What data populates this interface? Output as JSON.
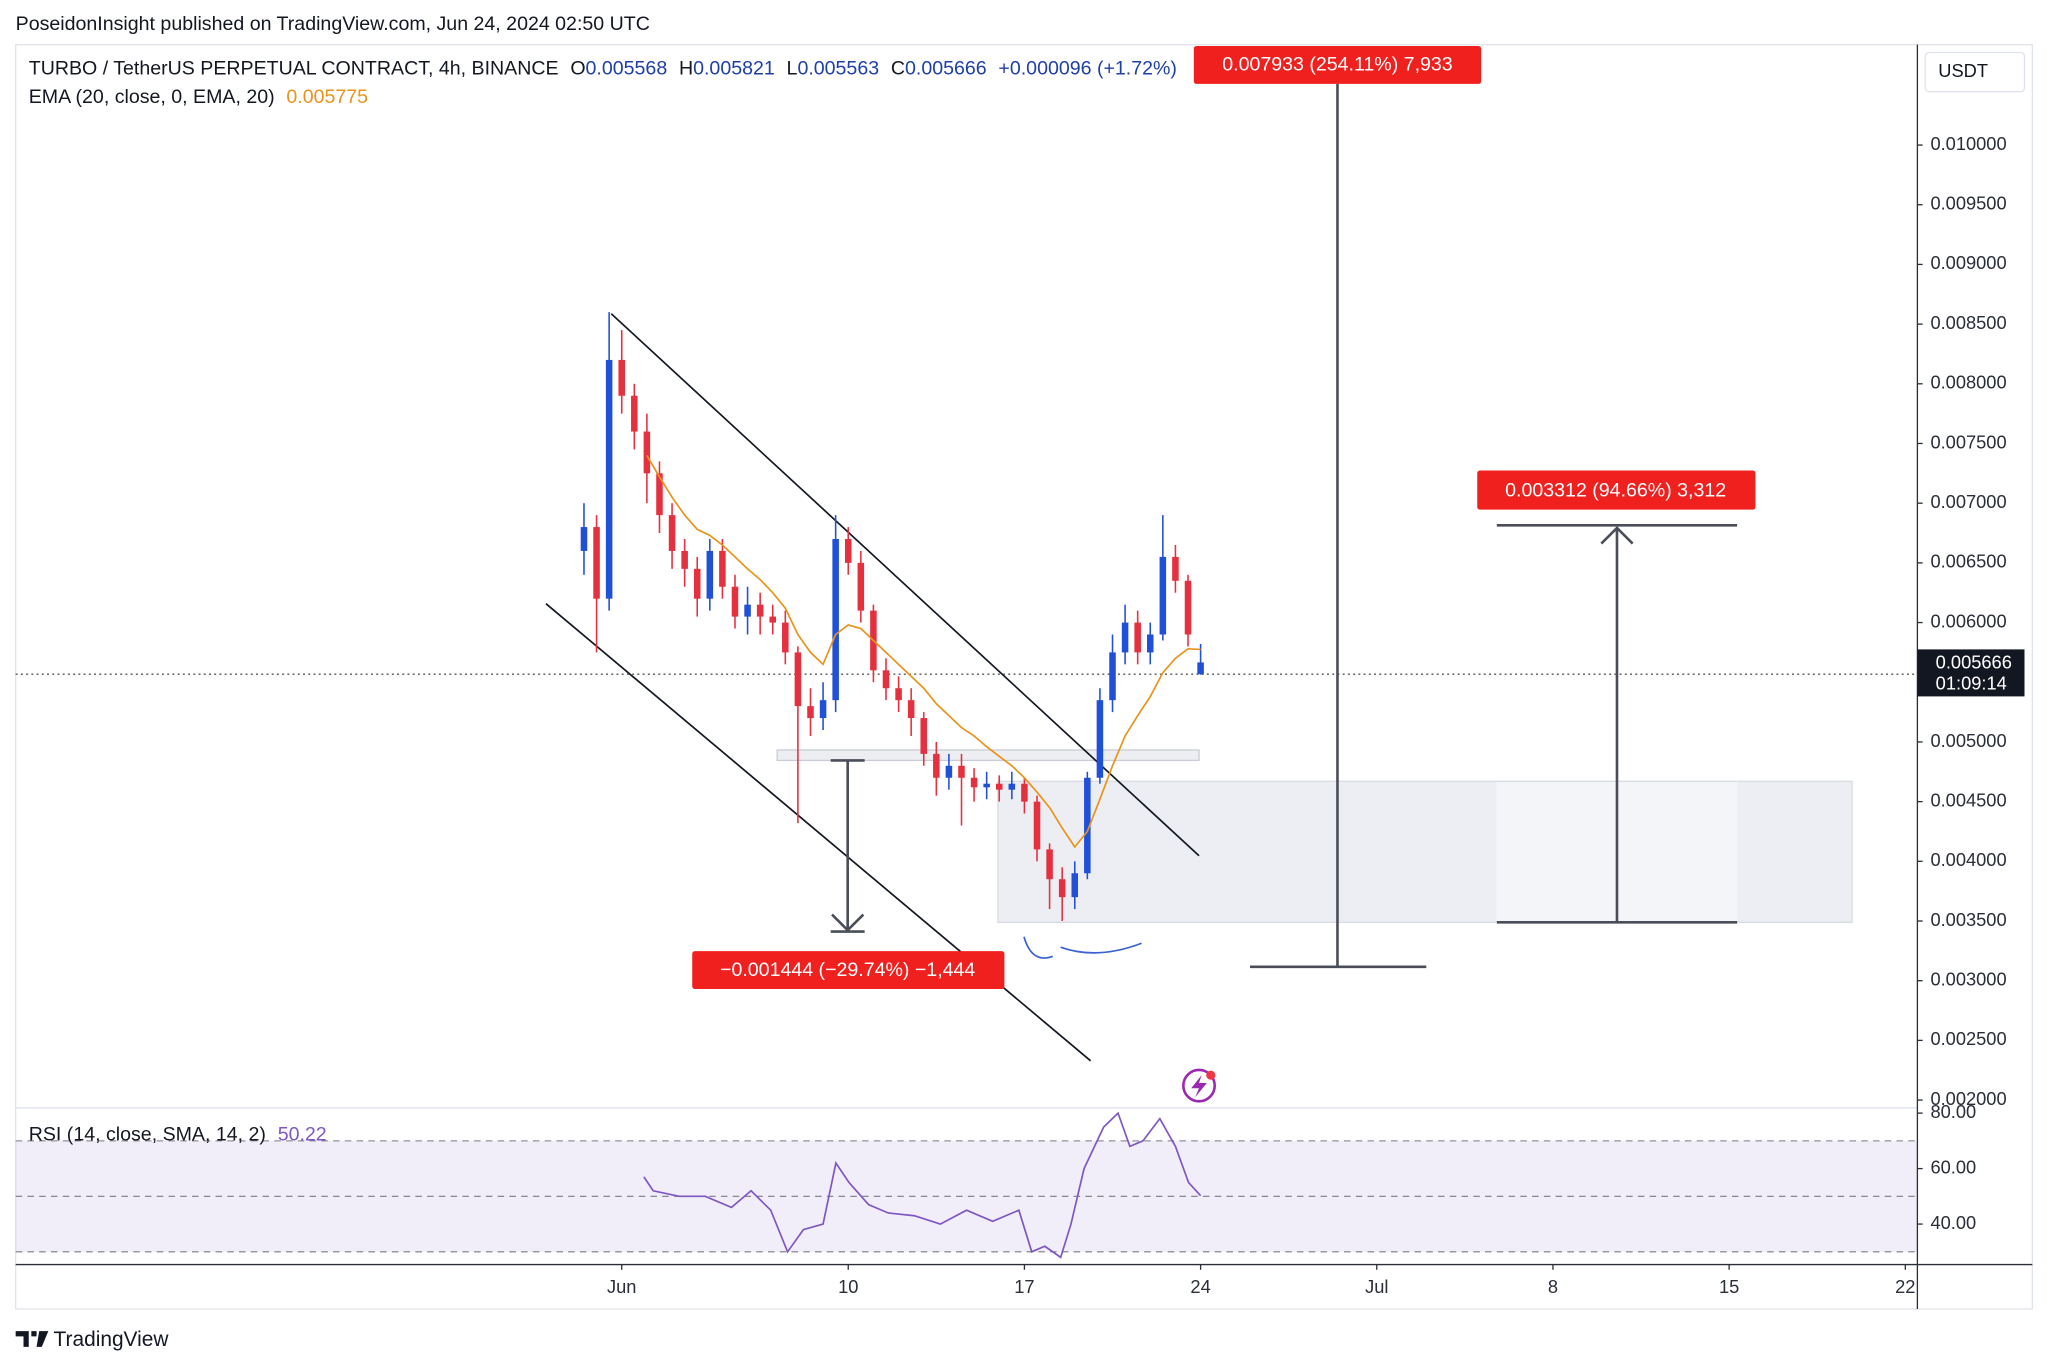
{
  "header": {
    "publisher": "PoseidonInsight published on TradingView.com, Jun 24, 2024 02:50 UTC"
  },
  "footer": {
    "brand": "TradingView"
  },
  "currency": "USDT",
  "chart_data": [
    {
      "type": "candlestick",
      "title": "TURBO / TetherUS PERPETUAL CONTRACT, 4h, BINANCE",
      "ohlc_labels": [
        "O",
        "H",
        "L",
        "C"
      ],
      "change": "+0.000096 (+1.72%)",
      "countdown": "01:09:14",
      "up_color": "#2150d8",
      "down_color": "#e5303f",
      "x": [
        -0.5,
        0,
        0.5,
        1,
        1.5,
        2,
        2.5,
        3,
        3.5,
        4,
        4.5,
        5,
        5.5,
        6,
        6.5,
        7,
        7.5,
        8,
        8.5,
        9,
        9.5,
        10,
        10.5,
        11,
        11.5,
        12,
        12.5,
        13,
        13.5,
        14,
        14.5,
        15,
        15.5,
        16,
        16.5,
        17,
        17.5,
        18,
        18.5,
        19,
        19.5,
        20,
        20.5,
        21,
        21.5,
        22,
        22.5,
        23,
        23.5,
        24
      ],
      "open": [
        0.0066,
        0.0068,
        0.0062,
        0.0082,
        0.0079,
        0.0076,
        0.00725,
        0.0069,
        0.0066,
        0.00645,
        0.0062,
        0.0066,
        0.0063,
        0.00605,
        0.00615,
        0.00605,
        0.006,
        0.00575,
        0.0053,
        0.0052,
        0.00535,
        0.0067,
        0.0065,
        0.0061,
        0.0056,
        0.00545,
        0.00535,
        0.0052,
        0.0049,
        0.0047,
        0.0048,
        0.0047,
        0.00462,
        0.00465,
        0.0046,
        0.00465,
        0.0045,
        0.0041,
        0.00385,
        0.0037,
        0.0039,
        0.0047,
        0.00535,
        0.00575,
        0.006,
        0.00575,
        0.0059,
        0.00655,
        0.00635,
        0.005568
      ],
      "high": [
        0.007,
        0.0069,
        0.0086,
        0.00845,
        0.008,
        0.00775,
        0.00735,
        0.007,
        0.0067,
        0.00655,
        0.0067,
        0.0067,
        0.0064,
        0.0063,
        0.00625,
        0.00615,
        0.0061,
        0.0058,
        0.00545,
        0.0055,
        0.0069,
        0.0068,
        0.0066,
        0.00615,
        0.0057,
        0.00555,
        0.00545,
        0.00525,
        0.005,
        0.0049,
        0.0049,
        0.00478,
        0.00475,
        0.00472,
        0.00475,
        0.0047,
        0.00455,
        0.00415,
        0.00395,
        0.004,
        0.00475,
        0.00545,
        0.0059,
        0.00615,
        0.0061,
        0.006,
        0.0069,
        0.00665,
        0.0064,
        0.005821
      ],
      "low": [
        0.0064,
        0.00575,
        0.0061,
        0.00775,
        0.00745,
        0.007,
        0.00675,
        0.00645,
        0.0063,
        0.00605,
        0.0061,
        0.0062,
        0.00595,
        0.0059,
        0.0059,
        0.0059,
        0.00565,
        0.00432,
        0.00505,
        0.0051,
        0.00525,
        0.0064,
        0.006,
        0.0055,
        0.00535,
        0.00525,
        0.00505,
        0.0048,
        0.00455,
        0.0046,
        0.0043,
        0.0045,
        0.00452,
        0.0045,
        0.00452,
        0.0044,
        0.004,
        0.0036,
        0.0035,
        0.0036,
        0.00385,
        0.00465,
        0.00525,
        0.00565,
        0.00565,
        0.00565,
        0.00585,
        0.00625,
        0.0058,
        0.005563
      ],
      "close": [
        0.0068,
        0.0062,
        0.0082,
        0.0079,
        0.0076,
        0.00725,
        0.0069,
        0.0066,
        0.00645,
        0.0062,
        0.0066,
        0.0063,
        0.00605,
        0.00615,
        0.00605,
        0.006,
        0.00575,
        0.0053,
        0.0052,
        0.00535,
        0.0067,
        0.0065,
        0.0061,
        0.0056,
        0.00545,
        0.00535,
        0.0052,
        0.0049,
        0.0047,
        0.0048,
        0.0047,
        0.00462,
        0.00465,
        0.0046,
        0.00465,
        0.0045,
        0.0041,
        0.00385,
        0.0037,
        0.0039,
        0.0047,
        0.00535,
        0.00575,
        0.006,
        0.00575,
        0.0059,
        0.00655,
        0.00635,
        0.0059,
        0.005666
      ],
      "series": [
        {
          "name": "EMA (20, close, 0, EMA, 20)",
          "color": "#e8941a",
          "values": [
            null,
            null,
            null,
            null,
            null,
            0.0074,
            0.00722,
            0.00705,
            0.0069,
            0.00678,
            0.00673,
            0.00665,
            0.00655,
            0.00645,
            0.00636,
            0.00625,
            0.00612,
            0.0059,
            0.00575,
            0.00565,
            0.0059,
            0.00598,
            0.00595,
            0.00585,
            0.00575,
            0.00565,
            0.00555,
            0.00545,
            0.00532,
            0.00522,
            0.00512,
            0.00505,
            0.00496,
            0.00488,
            0.0048,
            0.0047,
            0.00458,
            0.00445,
            0.00428,
            0.00412,
            0.00425,
            0.00452,
            0.0048,
            0.00505,
            0.00522,
            0.00538,
            0.00558,
            0.0057,
            0.00578,
            0.005775
          ]
        }
      ],
      "annotations": [
        "0.007933 (254.11%) 7,933",
        "0.003312 (94.66%) 3,312",
        "−0.001444 (−29.74%) −1,444"
      ],
      "xlim": [
        -23.08,
        52.48
      ],
      "xticks": [
        {
          "value": 1,
          "label": "Jun"
        },
        10,
        17,
        24,
        {
          "value": 31,
          "label": "Jul"
        },
        {
          "value": 38,
          "label": "8"
        },
        {
          "value": 45,
          "label": "15"
        },
        {
          "value": 52,
          "label": "22"
        }
      ],
      "ylim": [
        0.001935,
        0.01083
      ],
      "yticks": [
        {
          "value": 0.002,
          "label": "0.002000"
        },
        {
          "value": 0.0025,
          "label": "0.002500"
        },
        {
          "value": 0.003,
          "label": "0.003000"
        },
        {
          "value": 0.0035,
          "label": "0.003500"
        },
        {
          "value": 0.004,
          "label": "0.004000"
        },
        {
          "value": 0.0045,
          "label": "0.004500"
        },
        {
          "value": 0.005,
          "label": "0.005000"
        },
        {
          "value": 0.0055,
          "label": "0.005500"
        },
        {
          "value": 0.006,
          "label": "0.006000"
        },
        {
          "value": 0.0065,
          "label": "0.006500"
        },
        {
          "value": 0.007,
          "label": "0.007000"
        },
        {
          "value": 0.0075,
          "label": "0.007500"
        },
        {
          "value": 0.008,
          "label": "0.008000"
        },
        {
          "value": 0.0085,
          "label": "0.008500"
        },
        {
          "value": 0.009,
          "label": "0.009000"
        },
        {
          "value": 0.0095,
          "label": "0.009500"
        },
        {
          "value": 0.01,
          "label": "0.010000"
        }
      ],
      "grid": false
    },
    {
      "type": "line",
      "x": [
        1.88,
        2.25,
        3.28,
        4.32,
        5.36,
        6.14,
        6.92,
        7.59,
        8.22,
        9.0,
        9.51,
        10.03,
        10.81,
        11.59,
        12.63,
        13.66,
        14.7,
        15.74,
        16.78,
        17.29,
        17.81,
        18.44,
        18.85,
        19.37,
        20.15,
        20.72,
        21.19,
        21.71,
        22.38,
        23.0,
        23.52,
        24.0
      ],
      "series": [
        {
          "name": "RSI (14, close, SMA, 14, 2)",
          "color": "#7e57c2",
          "values": [
            57,
            52,
            50,
            50,
            46,
            52,
            45,
            30,
            38,
            40,
            62,
            55,
            47,
            44,
            43,
            40,
            45,
            41,
            45,
            30,
            32,
            28,
            40,
            60,
            75,
            80,
            68,
            70,
            78,
            68,
            55,
            50.22
          ]
        }
      ],
      "bands": [
        70,
        50,
        30
      ],
      "ylim": [
        25.4,
        81.9
      ],
      "yticks": [
        {
          "value": 80,
          "label": "80.00"
        },
        {
          "value": 60,
          "label": "60.00"
        },
        {
          "value": 40,
          "label": "40.00"
        }
      ],
      "grid": false
    }
  ]
}
